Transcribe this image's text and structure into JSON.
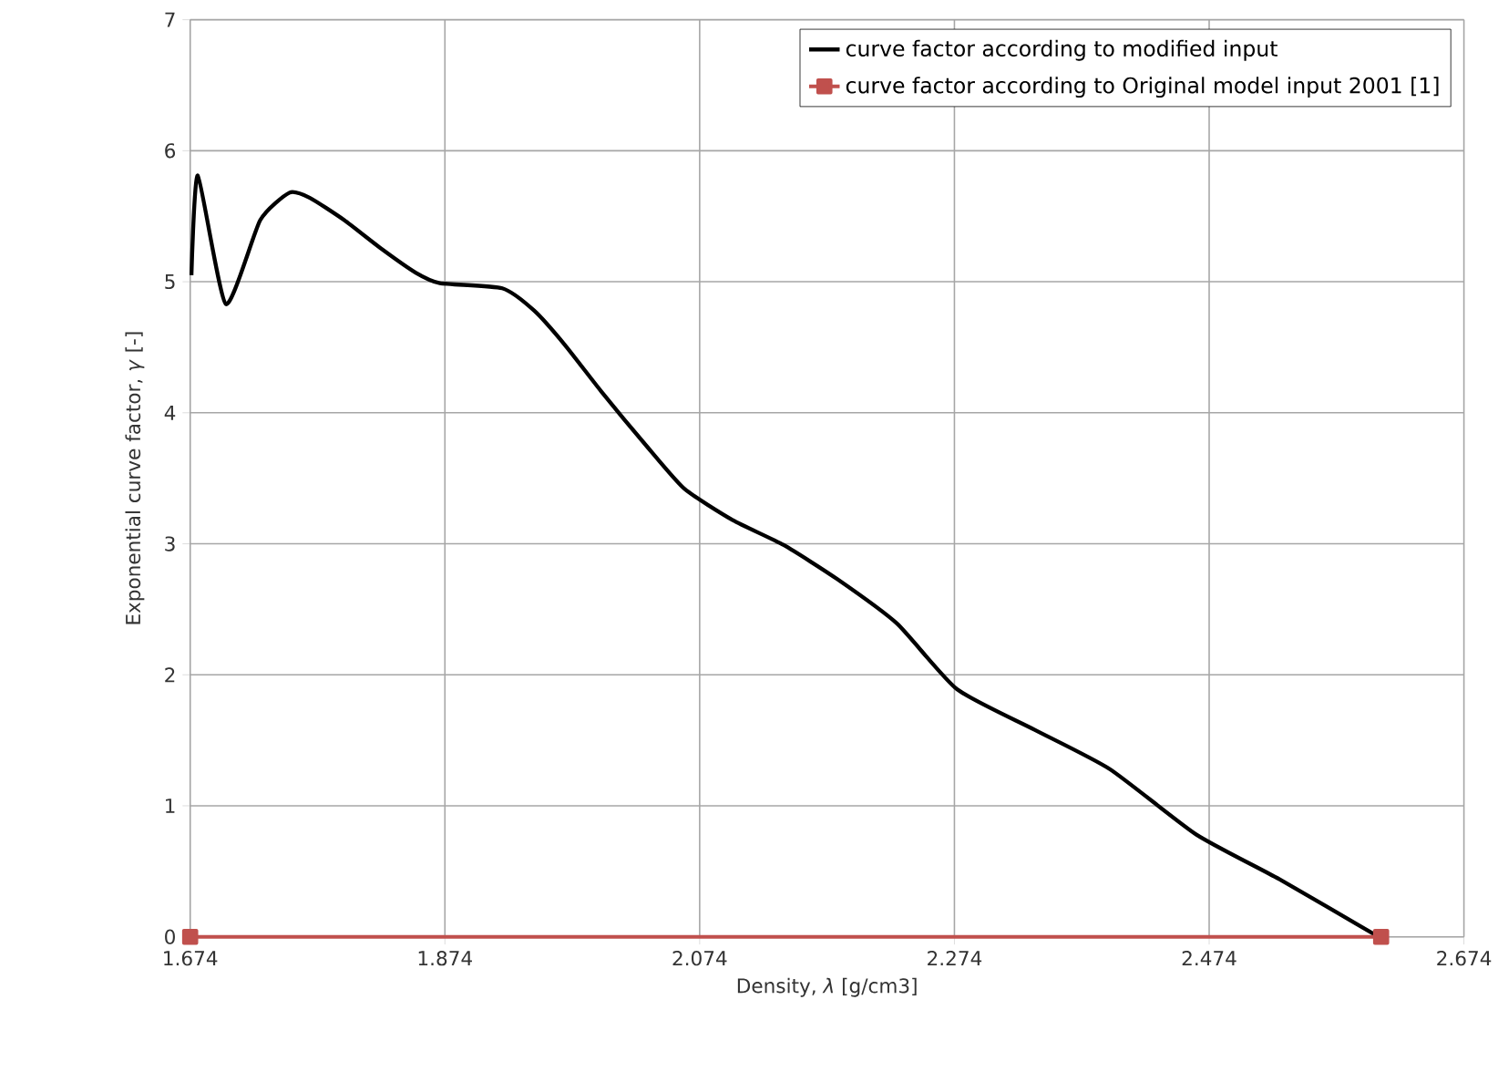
{
  "chart_data": {
    "type": "line",
    "xlabel": "Density, *λ* [g/cm3]",
    "ylabel": "Exponential curve factor, *γ*  [-]",
    "xlim": [
      1.674,
      2.674
    ],
    "ylim": [
      0,
      7
    ],
    "xticks": [
      1.674,
      1.874,
      2.074,
      2.274,
      2.474,
      2.674
    ],
    "yticks": [
      0,
      1,
      2,
      3,
      4,
      5,
      6,
      7
    ],
    "grid": true,
    "legend": "top right",
    "series": [
      {
        "name": "curve factor according to modified input",
        "color": "#000000",
        "marker": "none",
        "x": [
          1.675,
          1.68,
          1.702,
          1.729,
          1.752,
          1.768,
          1.795,
          1.823,
          1.851,
          1.87,
          1.919,
          1.944,
          1.968,
          1.997,
          2.032,
          2.062,
          2.1,
          2.14,
          2.182,
          2.229,
          2.276,
          2.337,
          2.396,
          2.464,
          2.529,
          2.607
        ],
        "values": [
          5.05,
          5.81,
          4.83,
          5.47,
          5.68,
          5.64,
          5.47,
          5.26,
          5.07,
          4.99,
          4.95,
          4.78,
          4.52,
          4.16,
          3.75,
          3.42,
          3.18,
          2.99,
          2.73,
          2.39,
          1.89,
          1.58,
          1.28,
          0.78,
          0.44,
          0.0
        ]
      },
      {
        "name": "curve factor according to Original model input 2001 [1]",
        "color": "#c0504d",
        "marker": "square",
        "x": [
          1.674,
          2.609
        ],
        "values": [
          0,
          0
        ]
      }
    ]
  }
}
